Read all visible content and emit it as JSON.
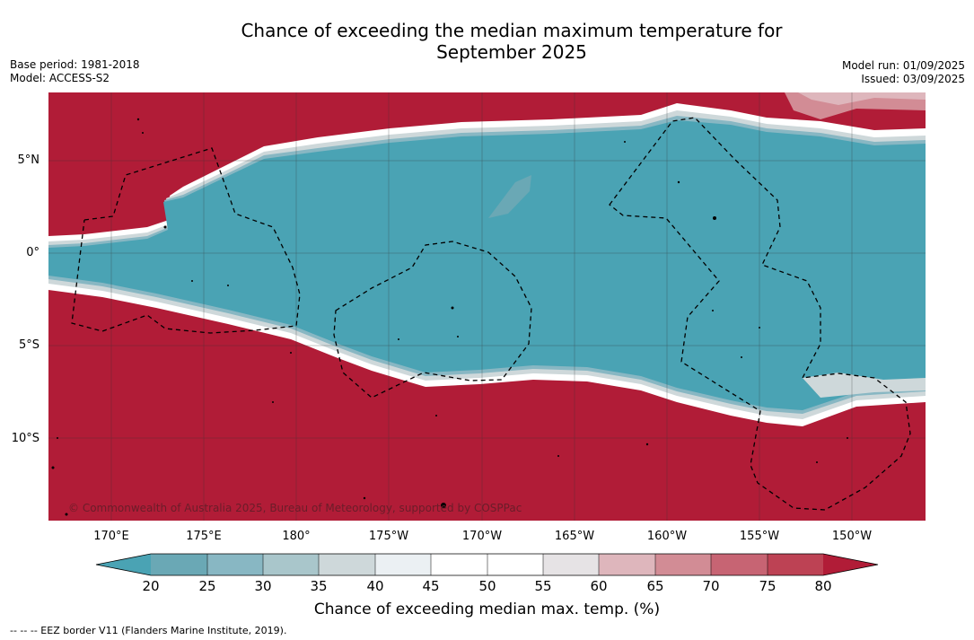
{
  "title_line1": "Chance of exceeding the median maximum temperature for",
  "title_line2": "September 2025",
  "meta_left": {
    "base_period": "Base period: 1981-2018",
    "model": "Model: ACCESS-S2"
  },
  "meta_right": {
    "model_run": "Model run: 01/09/2025",
    "issued": "Issued: 03/09/2025"
  },
  "lat_labels": [
    "5°N",
    "0°",
    "5°S",
    "10°S"
  ],
  "lon_labels": [
    "170°E",
    "175°E",
    "180°",
    "175°W",
    "170°W",
    "165°W",
    "160°W",
    "155°W",
    "150°W"
  ],
  "copyright": "© Commonwealth of Australia 2025, Bureau of Meteorology, supported by COSPPac",
  "colorbar": {
    "title": "Chance of exceeding median max. temp. (%)",
    "ticks": [
      "20",
      "25",
      "30",
      "35",
      "40",
      "45",
      "50",
      "55",
      "60",
      "65",
      "70",
      "75",
      "80"
    ],
    "colors": {
      "below_20": "#4aa3b4",
      "c20_25": "#6aa8b5",
      "c25_30": "#88b7c3",
      "c30_35": "#a9c6cb",
      "c35_40": "#ced8da",
      "c40_45": "#ebf0f3",
      "c45_50": "#ffffff",
      "c50_55": "#ffffff",
      "c55_60": "#e6e3e5",
      "c60_65": "#deb6bc",
      "c65_70": "#d28c95",
      "c70_75": "#c76473",
      "c75_80": "#bd4254",
      "above_80": "#b11c37"
    }
  },
  "footnote": "-- -- -- EEZ border V11 (Flanders Marine Institute, 2019)."
}
